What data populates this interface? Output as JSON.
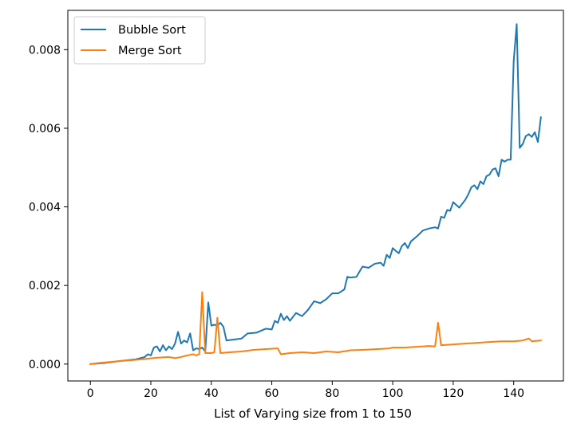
{
  "chart_data": {
    "type": "line",
    "title": "",
    "xlabel": "List of Varying size from 1 to 150",
    "ylabel": "",
    "xlim": [
      -7.45,
      156.45
    ],
    "ylim": [
      -0.00043,
      0.009
    ],
    "xticks": [
      0,
      20,
      40,
      60,
      80,
      100,
      120,
      140
    ],
    "yticks": [
      0.0,
      0.002,
      0.004,
      0.006,
      0.008
    ],
    "ytick_labels": [
      "0.000",
      "0.002",
      "0.004",
      "0.006",
      "0.008"
    ],
    "grid": false,
    "legend_position": "top-left",
    "series": [
      {
        "name": "Bubble Sort",
        "color": "#1f77b4",
        "points": [
          [
            0,
            0.0
          ],
          [
            5,
            3e-05
          ],
          [
            10,
            8e-05
          ],
          [
            15,
            0.00012
          ],
          [
            18,
            0.00018
          ],
          [
            19,
            0.00025
          ],
          [
            20,
            0.00022
          ],
          [
            21,
            0.00042
          ],
          [
            22,
            0.00045
          ],
          [
            23,
            0.00032
          ],
          [
            24,
            0.00048
          ],
          [
            25,
            0.00035
          ],
          [
            26,
            0.00045
          ],
          [
            27,
            0.00038
          ],
          [
            28,
            0.00052
          ],
          [
            29,
            0.00082
          ],
          [
            30,
            0.00052
          ],
          [
            31,
            0.0006
          ],
          [
            32,
            0.00055
          ],
          [
            33,
            0.00078
          ],
          [
            34,
            0.00035
          ],
          [
            35,
            0.0004
          ],
          [
            36,
            0.00038
          ],
          [
            37,
            0.00042
          ],
          [
            38,
            0.00032
          ],
          [
            39,
            0.00157
          ],
          [
            40,
            0.00098
          ],
          [
            41,
            0.001
          ],
          [
            42,
            0.00098
          ],
          [
            43,
            0.00105
          ],
          [
            44,
            0.00095
          ],
          [
            45,
            0.0006
          ],
          [
            50,
            0.00065
          ],
          [
            52,
            0.00078
          ],
          [
            55,
            0.0008
          ],
          [
            58,
            0.0009
          ],
          [
            60,
            0.00088
          ],
          [
            61,
            0.0011
          ],
          [
            62,
            0.00105
          ],
          [
            63,
            0.00128
          ],
          [
            64,
            0.00112
          ],
          [
            65,
            0.00122
          ],
          [
            66,
            0.0011
          ],
          [
            68,
            0.0013
          ],
          [
            70,
            0.00122
          ],
          [
            72,
            0.00138
          ],
          [
            74,
            0.0016
          ],
          [
            76,
            0.00155
          ],
          [
            78,
            0.00165
          ],
          [
            80,
            0.0018
          ],
          [
            82,
            0.0018
          ],
          [
            84,
            0.0019
          ],
          [
            85,
            0.00222
          ],
          [
            86,
            0.0022
          ],
          [
            88,
            0.00222
          ],
          [
            90,
            0.00248
          ],
          [
            92,
            0.00245
          ],
          [
            94,
            0.00255
          ],
          [
            96,
            0.00258
          ],
          [
            97,
            0.0025
          ],
          [
            98,
            0.00278
          ],
          [
            99,
            0.0027
          ],
          [
            100,
            0.00295
          ],
          [
            101,
            0.00288
          ],
          [
            102,
            0.00282
          ],
          [
            103,
            0.003
          ],
          [
            104,
            0.00308
          ],
          [
            105,
            0.00295
          ],
          [
            106,
            0.00312
          ],
          [
            108,
            0.00325
          ],
          [
            110,
            0.0034
          ],
          [
            112,
            0.00345
          ],
          [
            114,
            0.00348
          ],
          [
            115,
            0.00345
          ],
          [
            116,
            0.00375
          ],
          [
            117,
            0.00372
          ],
          [
            118,
            0.00392
          ],
          [
            119,
            0.0039
          ],
          [
            120,
            0.00412
          ],
          [
            121,
            0.00405
          ],
          [
            122,
            0.00398
          ],
          [
            124,
            0.00418
          ],
          [
            125,
            0.00432
          ],
          [
            126,
            0.0045
          ],
          [
            127,
            0.00455
          ],
          [
            128,
            0.00445
          ],
          [
            129,
            0.00465
          ],
          [
            130,
            0.00458
          ],
          [
            131,
            0.00478
          ],
          [
            132,
            0.00482
          ],
          [
            133,
            0.00495
          ],
          [
            134,
            0.00498
          ],
          [
            135,
            0.00478
          ],
          [
            136,
            0.0052
          ],
          [
            137,
            0.00515
          ],
          [
            138,
            0.0052
          ],
          [
            139,
            0.0052
          ],
          [
            140,
            0.0077
          ],
          [
            141,
            0.00865
          ],
          [
            142,
            0.0055
          ],
          [
            143,
            0.0056
          ],
          [
            144,
            0.0058
          ],
          [
            145,
            0.00585
          ],
          [
            146,
            0.00578
          ],
          [
            147,
            0.0059
          ],
          [
            148,
            0.00565
          ],
          [
            149,
            0.00628
          ]
        ]
      },
      {
        "name": "Merge Sort",
        "color": "#ff7f0e",
        "points": [
          [
            0,
            0.0
          ],
          [
            3,
            3e-05
          ],
          [
            6,
            5e-05
          ],
          [
            10,
            8e-05
          ],
          [
            14,
            0.0001
          ],
          [
            18,
            0.00013
          ],
          [
            22,
            0.00016
          ],
          [
            26,
            0.00018
          ],
          [
            28,
            0.00015
          ],
          [
            30,
            0.00018
          ],
          [
            32,
            0.00022
          ],
          [
            34,
            0.00025
          ],
          [
            35,
            0.00022
          ],
          [
            36,
            0.00025
          ],
          [
            37,
            0.00183
          ],
          [
            38,
            0.00028
          ],
          [
            40,
            0.00028
          ],
          [
            41,
            0.0003
          ],
          [
            42,
            0.00118
          ],
          [
            43,
            0.00028
          ],
          [
            46,
            0.0003
          ],
          [
            50,
            0.00032
          ],
          [
            54,
            0.00036
          ],
          [
            58,
            0.00038
          ],
          [
            62,
            0.0004
          ],
          [
            63,
            0.00025
          ],
          [
            66,
            0.00028
          ],
          [
            70,
            0.0003
          ],
          [
            74,
            0.00028
          ],
          [
            78,
            0.00032
          ],
          [
            82,
            0.0003
          ],
          [
            86,
            0.00035
          ],
          [
            90,
            0.00036
          ],
          [
            95,
            0.00038
          ],
          [
            99,
            0.0004
          ],
          [
            100,
            0.00042
          ],
          [
            104,
            0.00042
          ],
          [
            108,
            0.00044
          ],
          [
            112,
            0.00046
          ],
          [
            114,
            0.00045
          ],
          [
            115,
            0.00105
          ],
          [
            116,
            0.00048
          ],
          [
            120,
            0.0005
          ],
          [
            124,
            0.00052
          ],
          [
            128,
            0.00054
          ],
          [
            132,
            0.00056
          ],
          [
            136,
            0.00058
          ],
          [
            140,
            0.00058
          ],
          [
            143,
            0.0006
          ],
          [
            145,
            0.00065
          ],
          [
            146,
            0.00058
          ],
          [
            149,
            0.0006
          ]
        ]
      }
    ]
  }
}
